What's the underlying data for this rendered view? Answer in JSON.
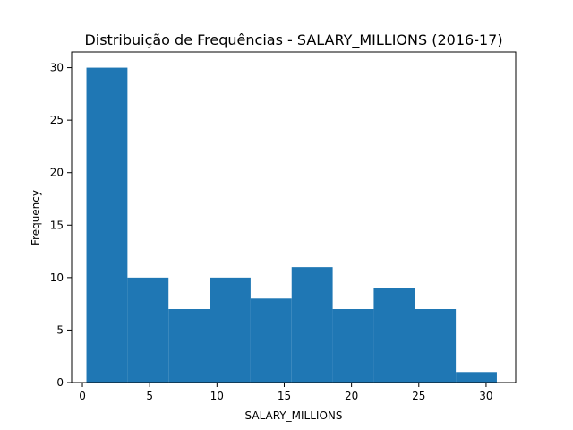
{
  "chart_data": {
    "type": "bar",
    "title": "Distribuição de Frequências - SALARY_MILLIONS (2016-17)",
    "xlabel": "SALARY_MILLIONS",
    "ylabel": "Frequency",
    "xlim": [
      -0.8,
      32.2
    ],
    "ylim": [
      0,
      31.5
    ],
    "x_ticks": [
      0,
      5,
      10,
      15,
      20,
      25,
      30
    ],
    "y_ticks": [
      0,
      5,
      10,
      15,
      20,
      25,
      30
    ],
    "bin_edges": [
      0.3,
      3.35,
      6.4,
      9.45,
      12.5,
      15.55,
      18.6,
      21.65,
      24.7,
      27.75,
      30.8
    ],
    "values": [
      30,
      10,
      7,
      10,
      8,
      11,
      7,
      9,
      7,
      1
    ],
    "bar_color": "#1f77b4",
    "grid": false,
    "legend": "none"
  }
}
